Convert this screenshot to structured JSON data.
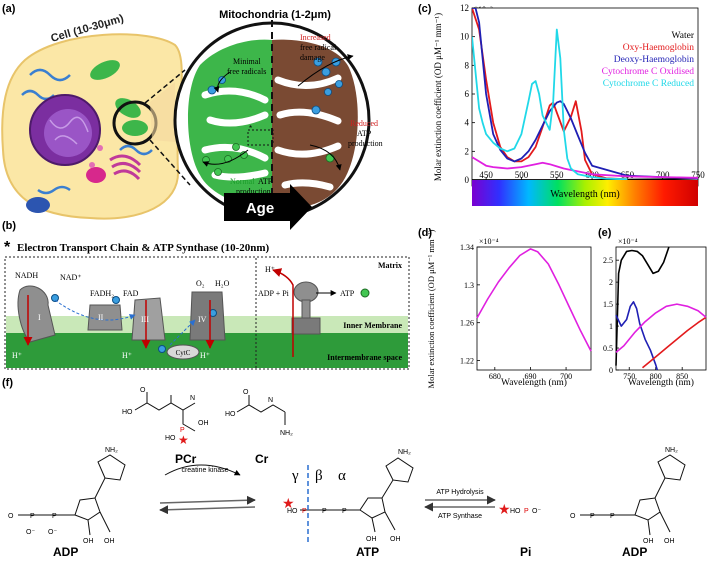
{
  "panel_labels": {
    "a": "(a)",
    "b": "(b)",
    "c": "(c)",
    "d": "(d)",
    "e": "(e)",
    "f": "(f)"
  },
  "panel_a": {
    "cell_label": "Cell (10-30μm)",
    "mito_label": "Mitochondria (1-2μm)",
    "minimal_1": "Minimal",
    "minimal_2": "free radicals",
    "increased_1": "Increased",
    "increased_2": "free radical",
    "increased_3": "damage",
    "reduced_1": "Reduced",
    "reduced_2": "ATP",
    "reduced_3": "production",
    "normal_1": "Normal",
    "normal_2": "ATP",
    "normal_3": "production",
    "age": "Age"
  },
  "panel_b": {
    "title": "Electron Transport Chain & ATP Synthase (10-20nm)",
    "star": "*",
    "nadh": "NADH",
    "nadp": "NAD⁺",
    "fadh2": "FADH₂",
    "fad": "FAD",
    "o2": "O₂",
    "h2o": "H₂O",
    "c1": "I",
    "c2": "II",
    "c3": "III",
    "c4": "IV",
    "cytc": "CytC",
    "h_plus": "H⁺",
    "adp_pi": "ADP + Pi",
    "atp": "ATP",
    "matrix": "Matrix",
    "inner_membrane": "Inner Membrane",
    "intermembrane": "Intermembrane space"
  },
  "panel_f": {
    "pcr": "PCr",
    "cr": "Cr",
    "adp_left": "ADP",
    "atp": "ATP",
    "pi": "Pi",
    "adp_right": "ADP",
    "creatine_kinase": "creatine kinase",
    "atp_hydrolysis": "ATP Hydrolysis",
    "atp_synthase": "ATP Synthase",
    "gamma": "γ",
    "beta": "β",
    "alpha": "α",
    "nh2": "NH₂",
    "n": "N",
    "oh": "OH",
    "ho": "HO",
    "o": "O",
    "o_minus": "O⁻",
    "p": "P"
  },
  "chart_data": [
    {
      "panel": "c",
      "type": "line",
      "xlabel": "Wavelength (nm)",
      "ylabel": "Molar extinction coefficient (OD μM⁻¹ mm⁻¹)",
      "y_multiplier": "*10⁻³",
      "xlim": [
        430,
        750
      ],
      "ylim": [
        0,
        12
      ],
      "xticks": [
        "450",
        "500",
        "550",
        "600",
        "650",
        "700",
        "750"
      ],
      "yticks": [
        "0",
        "2",
        "4",
        "6",
        "8",
        "10",
        "12"
      ],
      "legend_position": "top-right",
      "series": [
        {
          "name": "Water",
          "color": "#000000",
          "x": [
            430,
            500,
            600,
            700,
            750
          ],
          "y": [
            0,
            0,
            0,
            0.05,
            0.1
          ]
        },
        {
          "name": "Oxy-Haemoglobin",
          "color": "#e31a1c",
          "x": [
            430,
            440,
            450,
            460,
            470,
            480,
            490,
            500,
            510,
            520,
            530,
            540,
            545,
            550,
            560,
            570,
            577,
            585,
            590,
            600,
            620,
            650
          ],
          "y": [
            12,
            10.5,
            7,
            4,
            2.3,
            1.6,
            1.3,
            1.3,
            1.6,
            2.3,
            3.7,
            5.2,
            5.4,
            4.7,
            3.4,
            4.4,
            5.5,
            3.4,
            1.4,
            0.4,
            0.12,
            0.05
          ]
        },
        {
          "name": "Deoxy-Haemoglobin",
          "color": "#1f1fb4",
          "x": [
            430,
            435,
            440,
            450,
            460,
            470,
            480,
            490,
            500,
            510,
            520,
            530,
            540,
            550,
            555,
            560,
            570,
            580,
            590,
            600,
            650,
            700,
            750
          ],
          "y": [
            12,
            12,
            11,
            6,
            3.2,
            2.1,
            1.5,
            1.3,
            1.5,
            2.0,
            2.8,
            3.8,
            4.8,
            5.4,
            5.5,
            5.3,
            4.3,
            3.1,
            1.9,
            1.0,
            0.3,
            0.2,
            0.12
          ]
        },
        {
          "name": "Cytochrome C Oxidised",
          "color": "#e020e0",
          "x": [
            430,
            440,
            450,
            460,
            470,
            480,
            500,
            520,
            530,
            540,
            550,
            560,
            570,
            580,
            600,
            650,
            700,
            750
          ],
          "y": [
            1.6,
            1.3,
            1.0,
            0.9,
            0.85,
            0.8,
            0.9,
            1.1,
            1.2,
            1.1,
            0.95,
            0.8,
            0.7,
            0.6,
            0.4,
            0.25,
            0.2,
            0.15
          ]
        },
        {
          "name": "Cytochrome C Reduced",
          "color": "#20d8e8",
          "x": [
            430,
            440,
            445,
            450,
            460,
            470,
            480,
            490,
            500,
            510,
            515,
            520,
            525,
            530,
            540,
            545,
            550,
            555,
            560,
            565,
            570,
            580,
            600,
            620,
            650
          ],
          "y": [
            10,
            5,
            4,
            3.2,
            2.6,
            2.2,
            2.0,
            2.2,
            3.2,
            5.5,
            6.7,
            6.9,
            6.0,
            4.5,
            3.5,
            5.5,
            10.5,
            8.5,
            3.5,
            1.5,
            0.8,
            0.4,
            0.2,
            0.1,
            0.05
          ]
        }
      ]
    },
    {
      "panel": "d",
      "type": "line",
      "xlabel": "Wavelength (nm)",
      "ylabel": "Molar extinction coefficient (OD μM⁻¹ mm⁻¹)",
      "y_multiplier": "×10⁻⁴",
      "xlim": [
        675,
        707
      ],
      "ylim": [
        1.21,
        1.34
      ],
      "xticks": [
        "680",
        "690",
        "700"
      ],
      "yticks": [
        "1.22",
        "1.26",
        "1.3",
        "1.34"
      ],
      "series": [
        {
          "name": "Cytochrome C Oxidised",
          "color": "#e020e0",
          "x": [
            675,
            678,
            681,
            684,
            687,
            690,
            692,
            695,
            698,
            701,
            704,
            707
          ],
          "y": [
            1.265,
            1.285,
            1.303,
            1.318,
            1.331,
            1.338,
            1.335,
            1.322,
            1.3,
            1.276,
            1.252,
            1.23
          ]
        }
      ]
    },
    {
      "panel": "e",
      "type": "line",
      "xlabel": "Wavelength (nm)",
      "ylabel": "",
      "y_multiplier": "×10⁻⁴",
      "xlim": [
        725,
        895
      ],
      "ylim": [
        0,
        2.8
      ],
      "xticks": [
        "750",
        "800",
        "850"
      ],
      "yticks": [
        "0",
        "0.5",
        "1",
        "1.5",
        "2",
        "2.5"
      ],
      "series": [
        {
          "name": "Water",
          "color": "#000000",
          "x": [
            725,
            730,
            735,
            745,
            755,
            765,
            775,
            785,
            795,
            805,
            815,
            825
          ],
          "y": [
            0.1,
            2.2,
            2.5,
            2.7,
            2.72,
            2.7,
            2.6,
            2.4,
            2.2,
            2.25,
            2.45,
            2.8
          ]
        },
        {
          "name": "Deoxy-Haemoglobin",
          "color": "#1f1fb4",
          "x": [
            725,
            735,
            745,
            752,
            758,
            764,
            770,
            780,
            790,
            800,
            803
          ],
          "y": [
            1.25,
            1.0,
            1.15,
            1.45,
            1.55,
            1.4,
            1.05,
            0.7,
            0.45,
            0.12,
            0.0
          ]
        },
        {
          "name": "Oxy-Haemoglobin",
          "color": "#e31a1c",
          "x": [
            775,
            790,
            805,
            820,
            840,
            860,
            880,
            895
          ],
          "y": [
            0.05,
            0.2,
            0.35,
            0.5,
            0.7,
            0.9,
            1.08,
            1.2
          ]
        },
        {
          "name": "Cytochrome C Oxidised",
          "color": "#e020e0",
          "x": [
            725,
            740,
            760,
            780,
            800,
            820,
            840,
            860,
            880,
            895
          ],
          "y": [
            0.4,
            0.55,
            0.85,
            1.1,
            1.3,
            1.45,
            1.5,
            1.45,
            1.35,
            1.2
          ]
        }
      ]
    }
  ]
}
